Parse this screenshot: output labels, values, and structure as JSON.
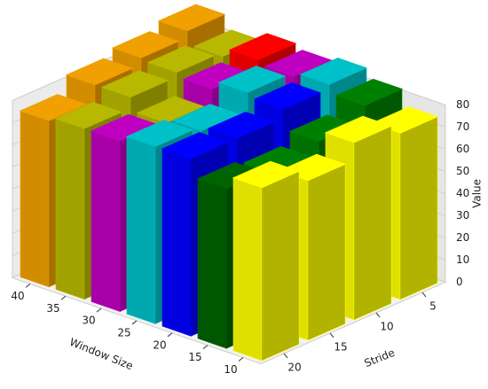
{
  "chart_data": {
    "type": "bar3d",
    "xlabel": "Window Size",
    "ylabel": "Stride",
    "zlabel": "Value",
    "window_sizes": [
      40,
      35,
      30,
      25,
      20,
      15,
      10
    ],
    "series": [
      {
        "stride": 5,
        "values": [
          88,
          82,
          86,
          84,
          86,
          82,
          75
        ],
        "colors": [
          "#f0a000",
          "#b8b800",
          "#ff0000",
          "#c000c0",
          "#00c0c8",
          "#008000",
          "#ffff00"
        ]
      },
      {
        "stride": 10,
        "values": [
          85,
          84,
          82,
          86,
          84,
          75,
          80
        ],
        "colors": [
          "#f0a000",
          "#b8b800",
          "#c000c0",
          "#00c0c8",
          "#0000ff",
          "#008000",
          "#ffff00"
        ]
      },
      {
        "stride": 15,
        "values": [
          82,
          82,
          76,
          78,
          80,
          70,
          72
        ],
        "colors": [
          "#f0a000",
          "#b8b800",
          "#b8b800",
          "#00c0c8",
          "#0000ff",
          "#008000",
          "#ffff00"
        ]
      },
      {
        "stride": 20,
        "values": [
          75,
          77,
          77,
          80,
          80,
          72,
          78
        ],
        "colors": [
          "#f0a000",
          "#b8b800",
          "#c000c0",
          "#00c0c8",
          "#0000ff",
          "#006400",
          "#ffff00"
        ]
      }
    ],
    "xlim": [
      7.5,
      42.5
    ],
    "xticks": [
      10,
      15,
      20,
      25,
      30,
      35,
      40
    ],
    "ylim": [
      2.5,
      22.5
    ],
    "yticks": [
      5,
      10,
      15,
      20
    ],
    "zlim": [
      0,
      80
    ],
    "zticks": [
      0,
      10,
      20,
      30,
      40,
      50,
      60,
      70,
      80
    ]
  }
}
